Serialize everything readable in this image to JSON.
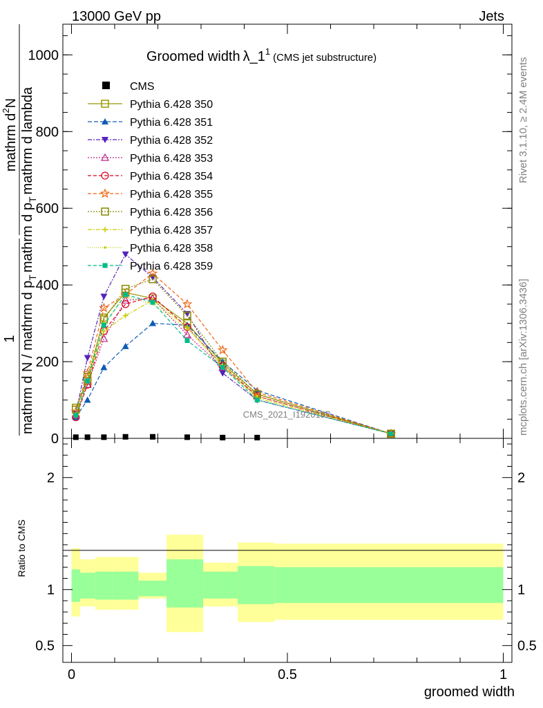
{
  "header": {
    "left": "13000 GeV pp",
    "right": "Jets"
  },
  "title": {
    "main": "Groomed width",
    "lambda": "λ_1",
    "superscript": "1",
    "sub": "(CMS jet substructure)"
  },
  "side_labels": {
    "rivet": "Rivet 3.1.10, ≥ 2.4M events",
    "mcplots": "mcplots.cern.ch [arXiv:1306.3436]"
  },
  "watermark": "CMS_2021_I1920187",
  "ylabel_top": {
    "fraction_numer": "1",
    "fraction_denom": "mathrm d N / mathrm d p",
    "denom_sub": "T",
    "rest": "mathrm d p",
    "rest_sub": "T",
    "rest2": "mathrm d lambda",
    "numer2": "mathrm d",
    "numer2_sup": "2",
    "numer2_rest": "N"
  },
  "ylabel_ratio": "Ratio to CMS",
  "xlabel": "groomed width",
  "colors": {
    "cms": "#000000",
    "band_inner": "#99ff99",
    "band_outer": "#ffff99"
  },
  "chart_data": {
    "type": "line",
    "xlim": [
      -0.02,
      1.02
    ],
    "ylim_main": [
      0,
      1080
    ],
    "ylim_ratio": [
      0.35,
      2.35
    ],
    "x_ticks": [
      "0",
      "0.5",
      "1"
    ],
    "y_ticks_main": [
      "0",
      "200",
      "400",
      "600",
      "800",
      "1000"
    ],
    "y_ticks_ratio": [
      "0.5",
      "1",
      "2"
    ],
    "x": [
      0.01,
      0.037,
      0.075,
      0.125,
      0.188,
      0.268,
      0.35,
      0.43,
      0.74
    ],
    "bin_edges": [
      0,
      0.02,
      0.055,
      0.095,
      0.155,
      0.22,
      0.305,
      0.385,
      0.47,
      1.0
    ],
    "cms": [
      3,
      3,
      3,
      4,
      4,
      3,
      2,
      2,
      0
    ],
    "ratio_inner": [
      [
        0.89,
        1.18
      ],
      [
        0.92,
        1.15
      ],
      [
        0.91,
        1.16
      ],
      [
        0.91,
        1.16
      ],
      [
        0.94,
        1.08
      ],
      [
        0.84,
        1.27
      ],
      [
        0.92,
        1.16
      ],
      [
        0.87,
        1.21
      ],
      [
        0.88,
        1.2
      ]
    ],
    "ratio_outer": [
      [
        0.76,
        1.37
      ],
      [
        0.85,
        1.27
      ],
      [
        0.82,
        1.29
      ],
      [
        0.82,
        1.29
      ],
      [
        0.92,
        1.15
      ],
      [
        0.62,
        1.49
      ],
      [
        0.85,
        1.24
      ],
      [
        0.71,
        1.42
      ],
      [
        0.73,
        1.41
      ]
    ],
    "series": [
      {
        "name": "Pythia 6.428 350",
        "color": "#999900",
        "dash": "",
        "marker": "square-open",
        "values": [
          80,
          150,
          315,
          380,
          365,
          300,
          195,
          115,
          12
        ]
      },
      {
        "name": "Pythia 6.428 351",
        "color": "#0e5bb5",
        "dash": "6,3",
        "marker": "triangle-up",
        "values": [
          55,
          100,
          185,
          240,
          300,
          295,
          200,
          125,
          12
        ]
      },
      {
        "name": "Pythia 6.428 352",
        "color": "#5522bb",
        "dash": "6,2,2,2",
        "marker": "triangle-down",
        "values": [
          65,
          210,
          370,
          480,
          420,
          325,
          170,
          100,
          12
        ]
      },
      {
        "name": "Pythia 6.428 353",
        "color": "#bb2288",
        "dash": "2,2",
        "marker": "triangle-open",
        "values": [
          60,
          140,
          260,
          360,
          365,
          270,
          185,
          110,
          12
        ]
      },
      {
        "name": "Pythia 6.428 354",
        "color": "#dd0022",
        "dash": "5,3",
        "marker": "circle-open",
        "values": [
          55,
          140,
          280,
          350,
          370,
          290,
          190,
          110,
          12
        ]
      },
      {
        "name": "Pythia 6.428 355",
        "color": "#ee6611",
        "dash": "5,3",
        "marker": "star-open",
        "values": [
          70,
          170,
          340,
          375,
          430,
          350,
          230,
          120,
          12
        ]
      },
      {
        "name": "Pythia 6.428 356",
        "color": "#888800",
        "dash": "2,2",
        "marker": "square-open",
        "values": [
          75,
          160,
          310,
          390,
          415,
          320,
          200,
          115,
          12
        ]
      },
      {
        "name": "Pythia 6.428 357",
        "color": "#cccc00",
        "dash": "6,2,2,2",
        "marker": "cross",
        "values": [
          60,
          150,
          280,
          320,
          360,
          290,
          190,
          105,
          12
        ]
      },
      {
        "name": "Pythia 6.428 358",
        "color": "#bbcc00",
        "dash": "1,2",
        "marker": "dot",
        "values": [
          65,
          155,
          300,
          370,
          350,
          285,
          185,
          110,
          12
        ]
      },
      {
        "name": "Pythia 6.428 359",
        "color": "#00bb88",
        "dash": "5,3",
        "marker": "square-filled",
        "values": [
          60,
          150,
          295,
          375,
          355,
          255,
          185,
          100,
          12
        ]
      }
    ],
    "cms_label": "CMS"
  }
}
